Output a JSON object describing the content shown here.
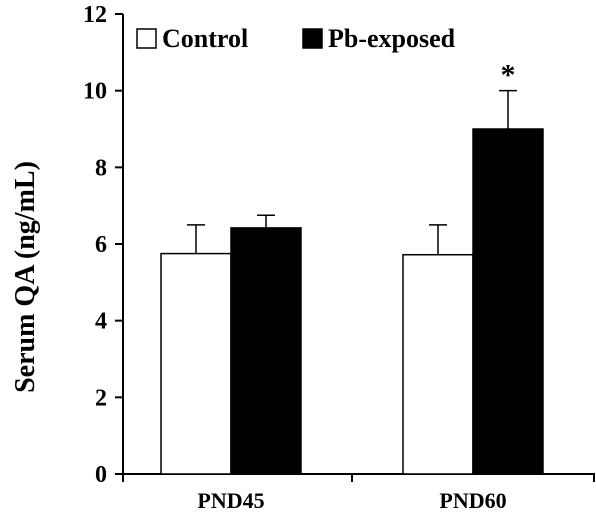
{
  "chart_data": {
    "type": "bar",
    "title": "",
    "xlabel": "",
    "ylabel": "Serum QA (ng/mL)",
    "ylim": [
      0,
      12
    ],
    "yticks": [
      0,
      2,
      4,
      6,
      8,
      10,
      12
    ],
    "categories": [
      "PND45",
      "PND60"
    ],
    "series": [
      {
        "name": "Control",
        "values": [
          5.75,
          5.72
        ],
        "errors": [
          0.75,
          0.78
        ],
        "color": "#ffffff"
      },
      {
        "name": "Pb-exposed",
        "values": [
          6.42,
          9.0
        ],
        "errors": [
          0.33,
          1.0
        ],
        "color": "#000000"
      }
    ],
    "annotations": [
      {
        "category": "PND60",
        "series": "Pb-exposed",
        "text": "*"
      }
    ],
    "legend_position": "top",
    "grid": false
  }
}
